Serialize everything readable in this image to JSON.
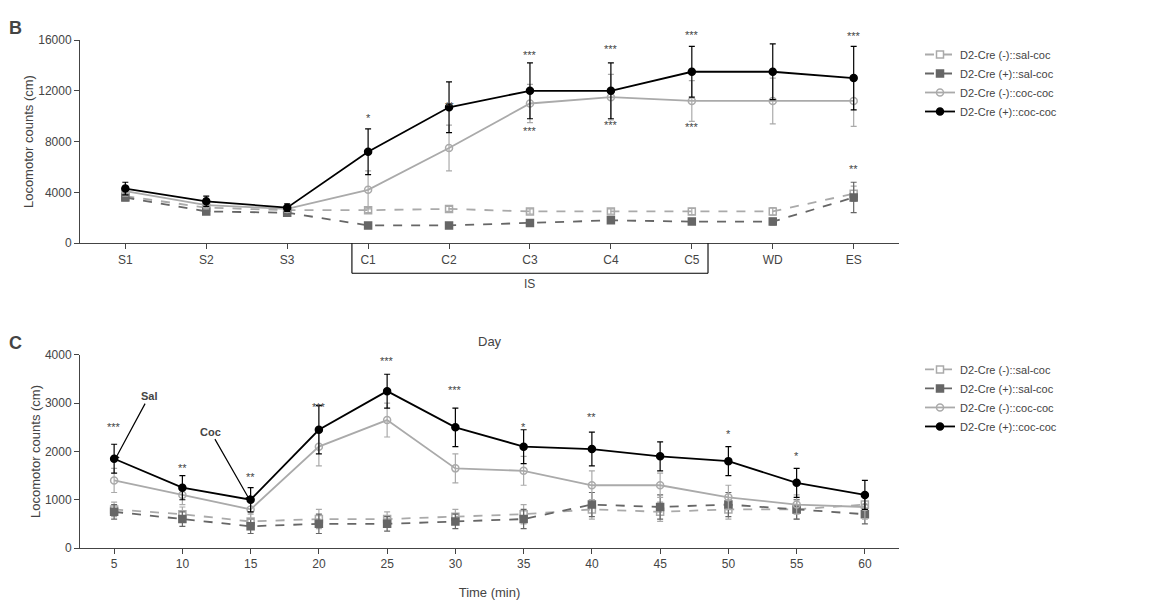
{
  "chart_data": [
    {
      "type": "line",
      "categories": [
        "S1",
        "S2",
        "S3",
        "C1",
        "C2",
        "C3",
        "C4",
        "C5",
        "WD",
        "ES"
      ],
      "ylabel": "Locomotor counts (cm)",
      "ylim": [
        0,
        16000
      ],
      "yticks": [
        0,
        4000,
        8000,
        12000,
        16000
      ],
      "grid": false,
      "legend": "right",
      "series": [
        {
          "name": "D2-Cre (-)::sal-coc",
          "color": "#aaaaaa",
          "marker": "square-open",
          "line_style": "dash",
          "values": [
            3700,
            2800,
            2600,
            2600,
            2700,
            2500,
            2500,
            2500,
            2500,
            3900
          ],
          "errors": [
            300,
            250,
            200,
            200,
            200,
            200,
            200,
            250,
            300,
            600
          ]
        },
        {
          "name": "D2-Cre (+)::sal-coc",
          "color": "#666666",
          "marker": "square",
          "line_style": "dash",
          "values": [
            3600,
            2500,
            2400,
            1400,
            1400,
            1600,
            1800,
            1700,
            1700,
            3600
          ],
          "errors": [
            250,
            200,
            200,
            200,
            200,
            250,
            250,
            200,
            250,
            1200
          ]
        },
        {
          "name": "D2-Cre (-)::coc-coc",
          "color": "#aaaaaa",
          "marker": "circle-open",
          "line_style": "solid",
          "values": [
            4100,
            3000,
            2700,
            4200,
            7500,
            11000,
            11500,
            11200,
            11200,
            11200
          ],
          "errors": [
            400,
            300,
            250,
            1500,
            1800,
            1500,
            1800,
            1600,
            1800,
            2000
          ]
        },
        {
          "name": "D2-Cre (+)::coc-coc",
          "color": "#000000",
          "marker": "circle",
          "line_style": "solid",
          "values": [
            4300,
            3300,
            2800,
            7200,
            10700,
            12000,
            12000,
            13500,
            13500,
            13000
          ],
          "errors": [
            500,
            400,
            300,
            1800,
            2000,
            2200,
            2200,
            2000,
            2200,
            2500
          ]
        }
      ],
      "annotations": [
        {
          "text": "B"
        },
        {
          "text": "IS",
          "x": [
            "C1",
            "C5"
          ]
        },
        {
          "text": "*",
          "x": "C1",
          "y": 9200
        },
        {
          "text": "**",
          "x": "C2",
          "y": 10200
        },
        {
          "text": "***",
          "x": "C3",
          "y": 14200
        },
        {
          "text": "***",
          "x": "C3",
          "y": 8200
        },
        {
          "text": "***",
          "x": "C4",
          "y": 14700
        },
        {
          "text": "***",
          "x": "C4",
          "y": 8700
        },
        {
          "text": "***",
          "x": "C5",
          "y": 15800
        },
        {
          "text": "***",
          "x": "C5",
          "y": 8500
        },
        {
          "text": "***",
          "x": "ES",
          "y": 15700
        },
        {
          "text": "**",
          "x": "ES",
          "y": 5200
        }
      ]
    },
    {
      "type": "line",
      "title": "Day",
      "x": [
        5,
        10,
        15,
        20,
        25,
        30,
        35,
        40,
        45,
        50,
        55,
        60
      ],
      "xlabel": "Time (min)",
      "ylabel": "Locomotor counts (cm)",
      "xlim": [
        2.5,
        62.5
      ],
      "xticks": [
        5,
        10,
        15,
        20,
        25,
        30,
        35,
        40,
        45,
        50,
        55,
        60
      ],
      "ylim": [
        0,
        4000
      ],
      "yticks": [
        0,
        1000,
        2000,
        3000,
        4000
      ],
      "grid": false,
      "legend": "right",
      "series": [
        {
          "name": "D2-Cre (-)::sal-coc",
          "color": "#aaaaaa",
          "marker": "square-open",
          "line_style": "dash",
          "values": [
            800,
            700,
            550,
            600,
            600,
            650,
            700,
            800,
            750,
            800,
            800,
            900
          ],
          "errors": [
            150,
            150,
            150,
            200,
            150,
            150,
            200,
            200,
            200,
            200,
            200,
            200
          ]
        },
        {
          "name": "D2-Cre (+)::sal-coc",
          "color": "#666666",
          "marker": "square",
          "line_style": "dash",
          "values": [
            750,
            600,
            450,
            500,
            500,
            550,
            600,
            900,
            850,
            900,
            800,
            700
          ],
          "errors": [
            150,
            150,
            150,
            200,
            150,
            150,
            200,
            250,
            250,
            250,
            200,
            200
          ]
        },
        {
          "name": "D2-Cre (-)::coc-coc",
          "color": "#aaaaaa",
          "marker": "circle-open",
          "line_style": "solid",
          "values": [
            1400,
            1100,
            800,
            2100,
            2650,
            1650,
            1600,
            1300,
            1300,
            1050,
            900,
            850
          ],
          "errors": [
            250,
            200,
            200,
            400,
            350,
            300,
            300,
            300,
            250,
            250,
            200,
            250
          ]
        },
        {
          "name": "D2-Cre (+)::coc-coc",
          "color": "#000000",
          "marker": "circle",
          "line_style": "solid",
          "values": [
            1850,
            1250,
            1000,
            2450,
            3250,
            2500,
            2100,
            2050,
            1900,
            1800,
            1350,
            1100
          ],
          "errors": [
            300,
            250,
            250,
            500,
            350,
            400,
            350,
            350,
            300,
            300,
            300,
            300
          ]
        }
      ],
      "annotations": [
        {
          "text": "C"
        },
        {
          "text": "Sal",
          "x": 5,
          "y": 1800,
          "arrow": true
        },
        {
          "text": "Coc",
          "x": 15,
          "y": 960,
          "arrow": true
        },
        {
          "text": "***",
          "x": 5,
          "y": 2350
        },
        {
          "text": "**",
          "x": 10,
          "y": 1500
        },
        {
          "text": "**",
          "x": 15,
          "y": 1300
        },
        {
          "text": "***",
          "x": 20,
          "y": 2750
        },
        {
          "text": "***",
          "x": 25,
          "y": 3700
        },
        {
          "text": "***",
          "x": 30,
          "y": 3100
        },
        {
          "text": "*",
          "x": 35,
          "y": 2350
        },
        {
          "text": "**",
          "x": 40,
          "y": 2550
        },
        {
          "text": "*",
          "x": 50,
          "y": 2200
        },
        {
          "text": "*",
          "x": 55,
          "y": 1750
        }
      ]
    }
  ]
}
